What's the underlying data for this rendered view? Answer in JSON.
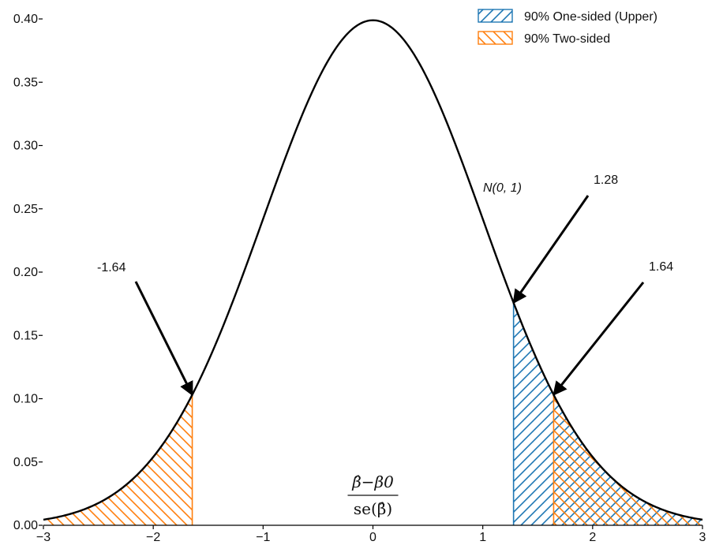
{
  "chart_data": {
    "type": "area",
    "x": [
      -3.0,
      -2.75,
      -2.5,
      -2.25,
      -2.0,
      -1.75,
      -1.645,
      -1.5,
      -1.25,
      -1.0,
      -0.75,
      -0.5,
      -0.25,
      0.0,
      0.25,
      0.5,
      0.75,
      1.0,
      1.25,
      1.28,
      1.5,
      1.645,
      1.75,
      2.0,
      2.25,
      2.5,
      2.75,
      3.0
    ],
    "y": [
      0.0044,
      0.0091,
      0.0175,
      0.0317,
      0.054,
      0.0863,
      0.1031,
      0.1295,
      0.1826,
      0.242,
      0.3011,
      0.3521,
      0.3867,
      0.3989,
      0.3867,
      0.3521,
      0.3011,
      0.242,
      0.1826,
      0.1758,
      0.1295,
      0.1031,
      0.0863,
      0.054,
      0.0317,
      0.0175,
      0.0091,
      0.0044
    ],
    "curve_label": "N(0, 1)",
    "xlim": [
      -3,
      3
    ],
    "ylim": [
      0,
      0.4
    ],
    "x_ticks": [
      -3,
      -2,
      -1,
      0,
      1,
      2,
      3
    ],
    "x_tick_labels": [
      "−3",
      "−2",
      "−1",
      "0",
      "1",
      "2",
      "3"
    ],
    "y_ticks": [
      0,
      0.05,
      0.1,
      0.15,
      0.2,
      0.25,
      0.3,
      0.35,
      0.4
    ],
    "y_tick_labels": [
      "0.00",
      "0.05",
      "0.10",
      "0.15",
      "0.20",
      "0.25",
      "0.30",
      "0.35",
      "0.40"
    ],
    "xlabel": {
      "numerator": "β̂−β0",
      "denominator": "se(β̂)"
    },
    "ylabel": "",
    "grid": false,
    "legend_position": "top-right",
    "series": [
      {
        "name": "90% One-sided (Upper)",
        "color": "#1f77b4",
        "hatch": "forward-diagonal",
        "from": 1.28,
        "to": 3.0
      },
      {
        "name": "90% Two-sided",
        "color": "#ff7f0e",
        "hatch": "back-diagonal",
        "regions": [
          [
            -3.0,
            -1.645
          ],
          [
            1.645,
            3.0
          ]
        ]
      }
    ],
    "annotations": [
      {
        "text": "-1.64",
        "x": -1.645,
        "y": 0.1031
      },
      {
        "text": "1.28",
        "x": 1.28,
        "y": 0.1758
      },
      {
        "text": "1.64",
        "x": 1.645,
        "y": 0.1031
      }
    ]
  }
}
